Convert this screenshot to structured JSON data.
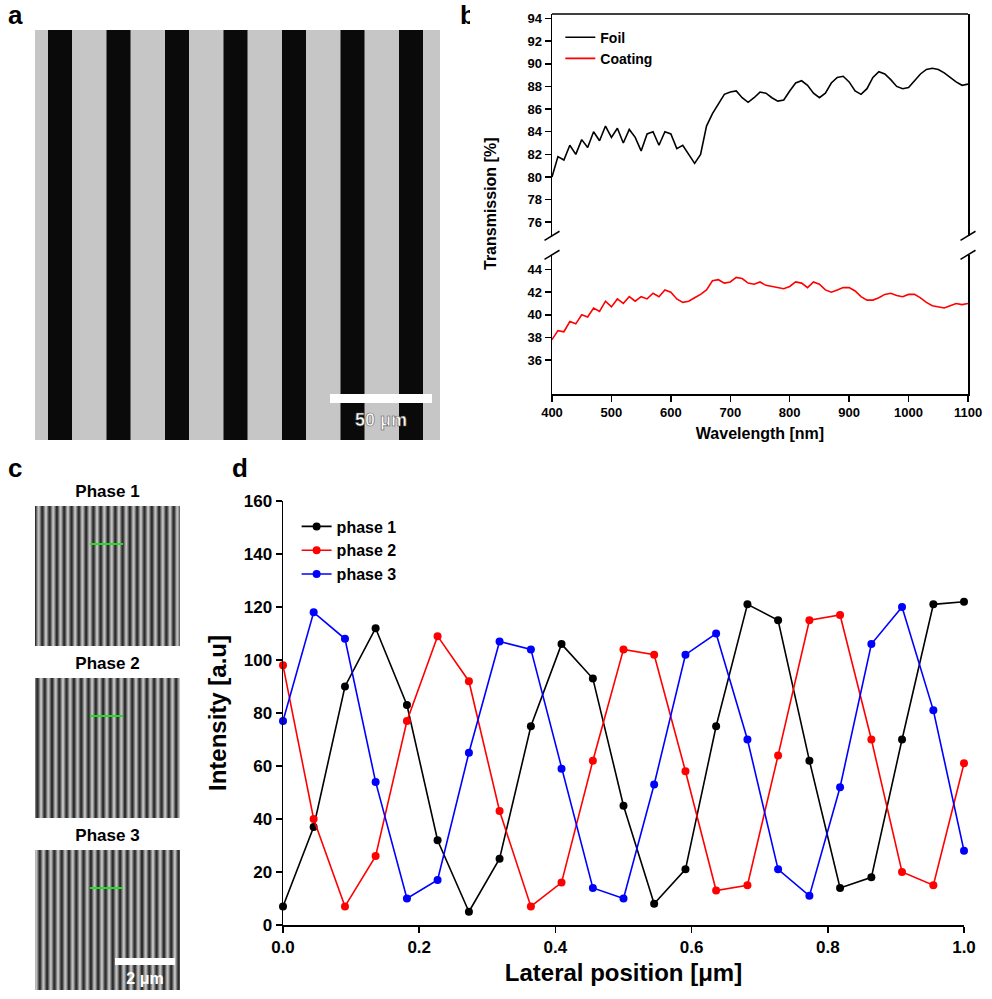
{
  "images": [
    {
      "panel": "a",
      "scale_bar": "50 μm"
    },
    {
      "panel": "c",
      "titles": [
        "Phase 1",
        "Phase 2",
        "Phase 3"
      ],
      "scale_bar": "2 μm"
    }
  ],
  "chart_data": [
    {
      "panel": "b",
      "type": "line",
      "x": [
        400,
        410,
        420,
        430,
        440,
        450,
        460,
        470,
        480,
        490,
        500,
        510,
        520,
        530,
        540,
        550,
        560,
        570,
        580,
        590,
        600,
        610,
        620,
        630,
        640,
        650,
        660,
        670,
        680,
        690,
        700,
        710,
        720,
        730,
        740,
        750,
        760,
        770,
        780,
        790,
        800,
        810,
        820,
        830,
        840,
        850,
        860,
        870,
        880,
        890,
        900,
        910,
        920,
        930,
        940,
        950,
        960,
        970,
        980,
        990,
        1000,
        1010,
        1020,
        1030,
        1040,
        1050,
        1060,
        1070,
        1080,
        1090,
        1100
      ],
      "series": [
        {
          "name": "Foil",
          "color": "#000000",
          "axis": "y2",
          "values": [
            80,
            81.8,
            81.5,
            82.8,
            82,
            83.3,
            82.6,
            84,
            83.2,
            84.5,
            83.5,
            84.3,
            83,
            84.2,
            83.5,
            82.3,
            83.8,
            84,
            82.8,
            84,
            83.8,
            82.5,
            82.8,
            82,
            81.2,
            82,
            84.5,
            85.6,
            86.5,
            87.3,
            87.5,
            87.6,
            87.0,
            86.6,
            87.0,
            87.5,
            87.4,
            87.0,
            86.7,
            86.8,
            87.6,
            88.3,
            88.5,
            88.1,
            87.4,
            87.0,
            87.4,
            88.3,
            88.8,
            88.9,
            88.4,
            87.6,
            87.3,
            87.8,
            88.8,
            89.3,
            89.1,
            88.6,
            88.0,
            87.8,
            87.9,
            88.5,
            89.1,
            89.5,
            89.6,
            89.5,
            89.2,
            88.8,
            88.4,
            88.1,
            88.2
          ]
        },
        {
          "name": "Coating",
          "color": "#ff0000",
          "values": [
            37.8,
            38.6,
            38.5,
            39.4,
            39.2,
            40.0,
            39.8,
            40.6,
            40.3,
            41.2,
            40.7,
            41.4,
            41.0,
            41.6,
            41.2,
            41.6,
            41.4,
            41.9,
            41.6,
            42.2,
            42.0,
            41.4,
            41.1,
            41.2,
            41.5,
            41.8,
            42.2,
            43.0,
            43.1,
            42.8,
            42.9,
            43.3,
            43.2,
            42.8,
            42.7,
            42.9,
            42.6,
            42.5,
            42.4,
            42.3,
            42.5,
            42.9,
            42.8,
            42.4,
            42.9,
            42.7,
            42.2,
            42.0,
            42.2,
            42.4,
            42.4,
            42.1,
            41.6,
            41.3,
            41.3,
            41.5,
            41.8,
            41.9,
            41.7,
            41.6,
            41.8,
            41.8,
            41.5,
            41.1,
            40.8,
            40.7,
            40.6,
            40.8,
            41.0,
            40.9,
            41.0
          ]
        }
      ],
      "xlabel": "Wavelength [nm]",
      "ylabel": "Transmission [%]",
      "xlim": [
        400,
        1100
      ],
      "xticks": [
        400,
        500,
        600,
        700,
        800,
        900,
        1000,
        1100
      ],
      "ylim": [
        33,
        45.3
      ],
      "yticks": [
        36,
        38,
        40,
        42,
        44
      ],
      "y2lim": [
        74.8,
        94.4
      ],
      "y2ticks": [
        76,
        78,
        80,
        82,
        84,
        86,
        88,
        90,
        92,
        94
      ],
      "legend": "upper left",
      "grid": false
    },
    {
      "panel": "d",
      "type": "line",
      "marker": "circle",
      "x": [
        0,
        0.045,
        0.091,
        0.136,
        0.182,
        0.227,
        0.273,
        0.318,
        0.364,
        0.409,
        0.455,
        0.5,
        0.545,
        0.591,
        0.636,
        0.682,
        0.727,
        0.773,
        0.818,
        0.864,
        0.909,
        0.955,
        1.0
      ],
      "series": [
        {
          "name": "phase 1",
          "color": "#000000",
          "values": [
            7,
            37,
            90,
            112,
            83,
            32,
            5,
            25,
            75,
            106,
            93,
            45,
            8,
            21,
            75,
            121,
            115,
            62,
            14,
            18,
            70,
            121,
            122
          ]
        },
        {
          "name": "phase 2",
          "color": "#ff0000",
          "values": [
            98,
            40,
            7,
            26,
            77,
            109,
            92,
            43,
            7,
            16,
            62,
            104,
            102,
            58,
            13,
            15,
            64,
            115,
            117,
            70,
            20,
            15,
            61
          ]
        },
        {
          "name": "phase 3",
          "color": "#0000ff",
          "values": [
            77,
            118,
            108,
            54,
            10,
            17,
            65,
            107,
            104,
            59,
            14,
            10,
            53,
            102,
            110,
            70,
            21,
            11,
            52,
            106,
            120,
            81,
            28
          ]
        }
      ],
      "xlabel": "Lateral position [μm]",
      "ylabel": "Intensity [a.u]",
      "xlim": [
        0,
        1
      ],
      "xticks": [
        {
          "value": 0,
          "label": "0.0"
        },
        0.2,
        0.4,
        0.6,
        0.8,
        {
          "value": 1,
          "label": "1.0"
        }
      ],
      "ylim": [
        0,
        160
      ],
      "yticks": [
        0,
        20,
        40,
        60,
        80,
        100,
        120,
        140,
        160
      ],
      "legend": "upper left",
      "grid": false
    }
  ]
}
